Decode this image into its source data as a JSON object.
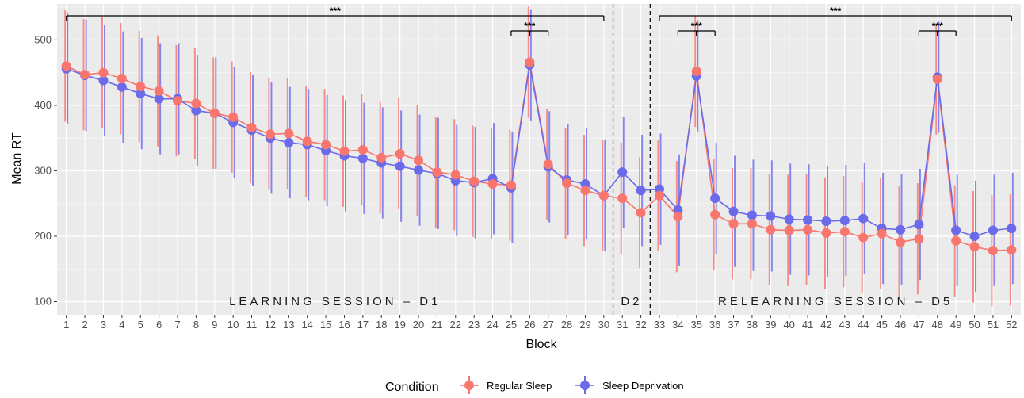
{
  "chart_data": {
    "type": "line",
    "xlabel": "Block",
    "ylabel": "Mean RT",
    "x": [
      1,
      2,
      3,
      4,
      5,
      6,
      7,
      8,
      9,
      10,
      11,
      12,
      13,
      14,
      15,
      16,
      17,
      18,
      19,
      20,
      21,
      22,
      23,
      24,
      25,
      26,
      27,
      28,
      29,
      30,
      31,
      32,
      33,
      34,
      35,
      36,
      37,
      38,
      39,
      40,
      41,
      42,
      43,
      44,
      45,
      46,
      47,
      48,
      49,
      50,
      51,
      52
    ],
    "ylim": [
      80,
      555
    ],
    "yticks": [
      100,
      200,
      300,
      400,
      500
    ],
    "grid": true,
    "series": [
      {
        "name": "Regular Sleep",
        "color": "#F8766D",
        "values": [
          460,
          447,
          450,
          441,
          429,
          422,
          407,
          403,
          388,
          382,
          366,
          356,
          357,
          345,
          340,
          330,
          332,
          320,
          326,
          316,
          298,
          294,
          284,
          280,
          278,
          466,
          310,
          281,
          270,
          262,
          258,
          236,
          262,
          230,
          452,
          233,
          219,
          219,
          210,
          209,
          210,
          205,
          207,
          198,
          204,
          191,
          196,
          440,
          193,
          184,
          178,
          179
        ],
        "errors": [
          85,
          85,
          85,
          85,
          85,
          85,
          85,
          85,
          85,
          85,
          85,
          85,
          85,
          85,
          85,
          85,
          85,
          85,
          85,
          85,
          85,
          85,
          85,
          85,
          85,
          85,
          85,
          85,
          85,
          85,
          85,
          85,
          85,
          85,
          85,
          85,
          85,
          85,
          85,
          85,
          85,
          85,
          85,
          85,
          85,
          85,
          85,
          85,
          85,
          85,
          85,
          85
        ]
      },
      {
        "name": "Sleep Deprivation",
        "color": "#6A6AEB",
        "values": [
          456,
          446,
          438,
          428,
          418,
          410,
          410,
          392,
          388,
          374,
          362,
          350,
          343,
          340,
          331,
          323,
          319,
          312,
          307,
          301,
          296,
          285,
          282,
          288,
          274,
          462,
          306,
          286,
          280,
          262,
          298,
          270,
          272,
          240,
          445,
          258,
          238,
          232,
          231,
          226,
          225,
          223,
          224,
          227,
          212,
          210,
          218,
          443,
          209,
          200,
          209,
          212
        ],
        "errors": [
          85,
          85,
          85,
          85,
          85,
          85,
          85,
          85,
          85,
          85,
          85,
          85,
          85,
          85,
          85,
          85,
          85,
          85,
          85,
          85,
          85,
          85,
          85,
          85,
          85,
          85,
          85,
          85,
          85,
          85,
          85,
          85,
          85,
          85,
          85,
          85,
          85,
          85,
          85,
          85,
          85,
          85,
          85,
          85,
          85,
          85,
          85,
          85,
          85,
          85,
          85,
          85
        ]
      }
    ],
    "sections": [
      {
        "label": "LEARNING SESSION – D1",
        "from": 1,
        "to": 30
      },
      {
        "label": "D2",
        "from": 31,
        "to": 32
      },
      {
        "label": "RELEARNING SESSION – D5",
        "from": 33,
        "to": 52
      }
    ],
    "session_dividers": [
      30.5,
      32.5
    ],
    "significance": [
      {
        "from": 1,
        "to": 30,
        "label": "***",
        "tick": null
      },
      {
        "from": 25,
        "to": 27,
        "label": "***",
        "tick": 26
      },
      {
        "from": 33,
        "to": 52,
        "label": "***",
        "tick": null
      },
      {
        "from": 34,
        "to": 36,
        "label": "***",
        "tick": 35
      },
      {
        "from": 47,
        "to": 49,
        "label": "***",
        "tick": 48
      }
    ],
    "legend": {
      "title": "Condition",
      "position": "bottom",
      "entries": [
        "Regular Sleep",
        "Sleep Deprivation"
      ]
    }
  }
}
